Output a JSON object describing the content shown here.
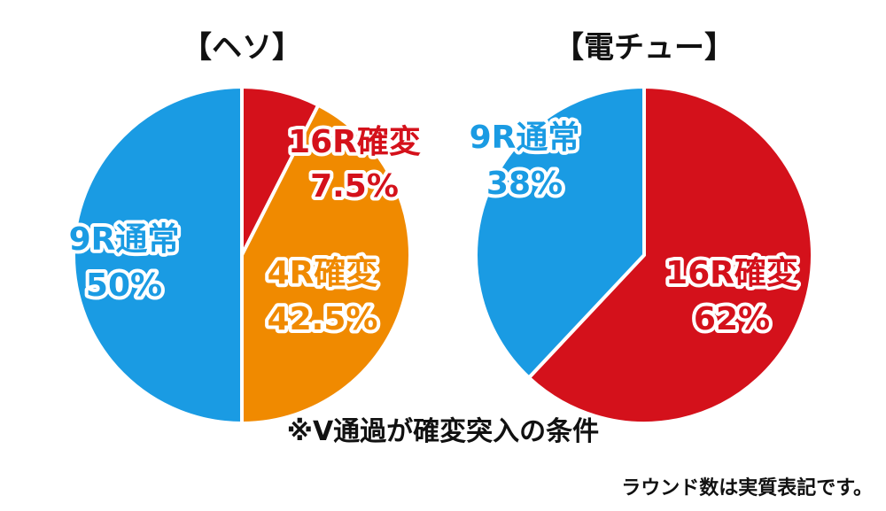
{
  "colors": {
    "normal_9r": "#1a9be3",
    "kakuhen_16r": "#d4111b",
    "kakuhen_4r": "#f08a00",
    "divider": "#ffffff"
  },
  "chart_data": [
    {
      "type": "pie",
      "title": "【ヘソ】",
      "slices": [
        {
          "name": "16R確変",
          "value": 7.5,
          "label": "7.5%",
          "color": "#d4111b"
        },
        {
          "name": "4R確変",
          "value": 42.5,
          "label": "42.5%",
          "color": "#f08a00"
        },
        {
          "name": "9R通常",
          "value": 50,
          "label": "50%",
          "color": "#1a9be3"
        }
      ]
    },
    {
      "type": "pie",
      "title": "【電チュー】",
      "slices": [
        {
          "name": "16R確変",
          "value": 62,
          "label": "62%",
          "color": "#d4111b"
        },
        {
          "name": "9R通常",
          "value": 38,
          "label": "38%",
          "color": "#1a9be3"
        }
      ]
    }
  ],
  "note": "※V通過が確変突入の条件",
  "footnote": "ラウンド数は実質表記です。"
}
